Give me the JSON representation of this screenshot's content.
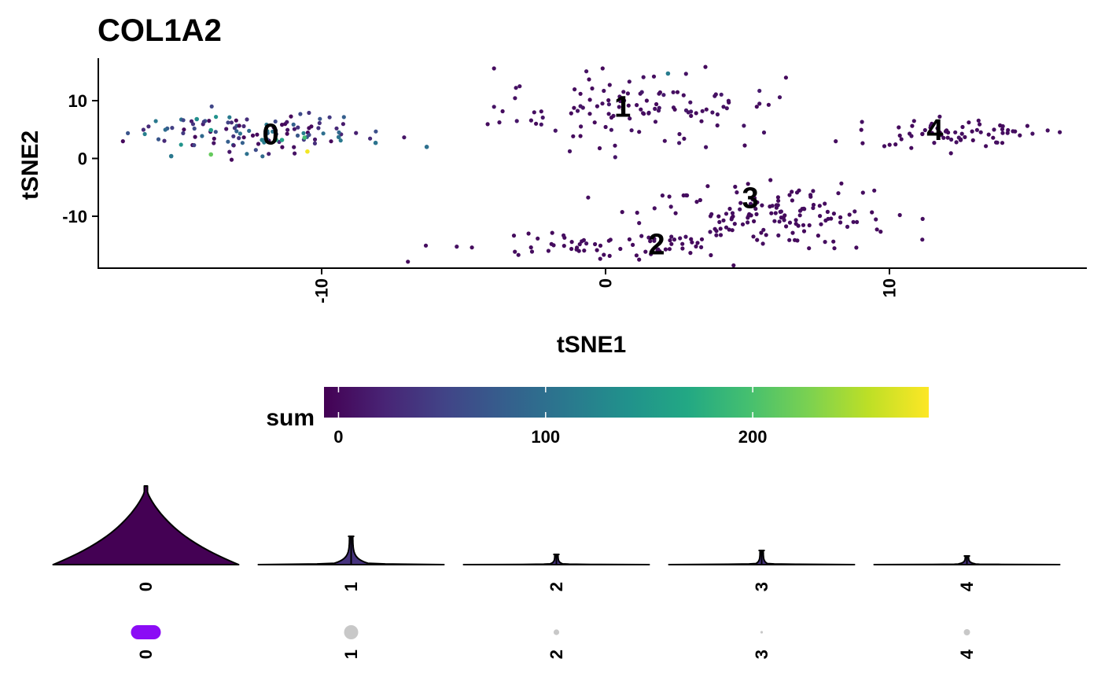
{
  "chart_data": {
    "type": "scatter",
    "title": "COL1A2",
    "xlabel": "tSNE1",
    "ylabel": "tSNE2",
    "xlim": [
      -18,
      17
    ],
    "ylim": [
      -19,
      17.5
    ],
    "xticks": [
      -10,
      0,
      10
    ],
    "yticks": [
      10,
      0,
      -10
    ],
    "grid": false,
    "color_scale": {
      "title": "sum",
      "range": [
        -7,
        285
      ],
      "ticks": [
        0,
        100,
        200
      ],
      "palette": "viridis"
    },
    "cluster_labels": [
      {
        "label": "0",
        "x": -11.8,
        "y": 4.2
      },
      {
        "label": "1",
        "x": 0.6,
        "y": 9.0
      },
      {
        "label": "2",
        "x": 1.8,
        "y": -14.8
      },
      {
        "label": "3",
        "x": 5.1,
        "y": -6.8
      },
      {
        "label": "4",
        "x": 11.6,
        "y": 5.0
      }
    ],
    "clusters": [
      {
        "id": "0",
        "n": 115,
        "cx": -12.5,
        "cy": 4.5,
        "sx": 2.9,
        "sy": 2.4,
        "value_mean": 45,
        "value_sd": 45
      },
      {
        "id": "1",
        "n": 120,
        "cx": 1.3,
        "cy": 8.5,
        "sx": 3.3,
        "sy": 4.2,
        "value_mean": 4,
        "value_sd": 4
      },
      {
        "id": "2",
        "n": 70,
        "cx": -0.5,
        "cy": -15.0,
        "sx": 3.8,
        "sy": 1.5,
        "value_mean": 2,
        "value_sd": 2
      },
      {
        "id": "3",
        "n": 140,
        "cx": 5.8,
        "cy": -9.5,
        "sx": 3.0,
        "sy": 3.6,
        "value_mean": 2,
        "value_sd": 2
      },
      {
        "id": "4",
        "n": 70,
        "cx": 12.2,
        "cy": 4.4,
        "sx": 2.2,
        "sy": 1.6,
        "value_mean": 2,
        "value_sd": 2
      }
    ],
    "highlight_points": [
      {
        "x": -10.5,
        "y": 1.2,
        "v": 280
      },
      {
        "x": -13.9,
        "y": 0.7,
        "v": 215
      },
      {
        "x": -10.6,
        "y": 3.6,
        "v": 195
      },
      {
        "x": -11.6,
        "y": 3.2,
        "v": 175
      },
      {
        "x": -11.4,
        "y": 3.2,
        "v": 160
      },
      {
        "x": -13.9,
        "y": 4.9,
        "v": 150
      },
      {
        "x": -14.4,
        "y": 6.8,
        "v": 135
      },
      {
        "x": -12.1,
        "y": 3.2,
        "v": 120
      },
      {
        "x": 2.2,
        "y": 14.7,
        "v": 115
      },
      {
        "x": -15.3,
        "y": 0.4,
        "v": 110
      },
      {
        "x": -9.4,
        "y": 3.7,
        "v": 105
      },
      {
        "x": -8.1,
        "y": 2.7,
        "v": 105
      },
      {
        "x": -6.3,
        "y": 2.0,
        "v": 100
      }
    ],
    "violins": [
      {
        "category": "0",
        "max": 1.0,
        "width": 1.0
      },
      {
        "category": "1",
        "max": 0.36,
        "width": 0.22
      },
      {
        "category": "2",
        "max": 0.13,
        "width": 0.08
      },
      {
        "category": "3",
        "max": 0.18,
        "width": 0.07
      },
      {
        "category": "4",
        "max": 0.11,
        "width": 0.12
      }
    ],
    "dot_row": [
      {
        "category": "0",
        "size": 1.0,
        "color": "#8B0CF5"
      },
      {
        "category": "1",
        "size": 0.45,
        "color": "#C8C8C8"
      },
      {
        "category": "2",
        "size": 0.18,
        "color": "#C8C8C8"
      },
      {
        "category": "3",
        "size": 0.08,
        "color": "#C8C8C8"
      },
      {
        "category": "4",
        "size": 0.2,
        "color": "#C8C8C8"
      }
    ]
  }
}
